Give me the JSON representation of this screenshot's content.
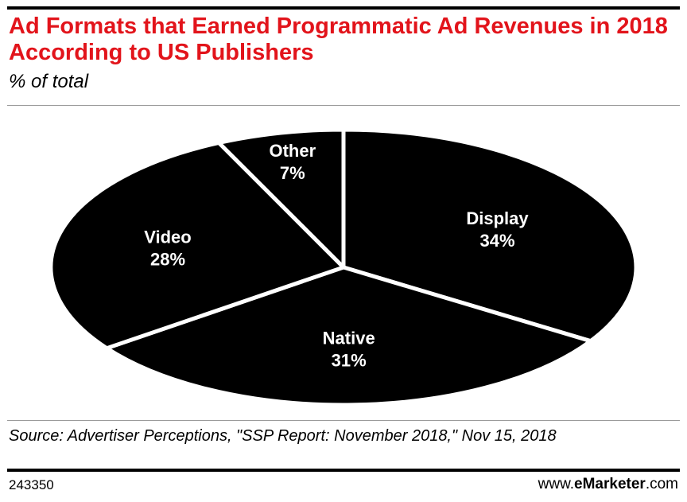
{
  "header": {
    "title": "Ad Formats that Earned Programmatic Ad Revenues in 2018 According to US Publishers",
    "subtitle": "% of total"
  },
  "chart_data": {
    "type": "pie",
    "title": "Ad Formats that Earned Programmatic Ad Revenues in 2018 According to US Publishers",
    "subtitle": "% of total",
    "slices": [
      {
        "label": "Display",
        "value": 34,
        "value_label": "34%"
      },
      {
        "label": "Native",
        "value": 31,
        "value_label": "31%"
      },
      {
        "label": "Video",
        "value": 28,
        "value_label": "28%"
      },
      {
        "label": "Other",
        "value": 7,
        "value_label": "7%"
      }
    ],
    "fill_color": "#000000",
    "separator_color": "#ffffff",
    "label_color": "#ffffff",
    "legend": "none"
  },
  "footer": {
    "source": "Source: Advertiser Perceptions, \"SSP Report: November 2018,\" Nov 15, 2018",
    "chart_id": "243350",
    "brand_prefix": "www.",
    "brand_bold": "eMarketer",
    "brand_suffix": ".com"
  },
  "colors": {
    "title": "#e2141b",
    "rule": "#000000",
    "divider": "#9a9a9a"
  }
}
